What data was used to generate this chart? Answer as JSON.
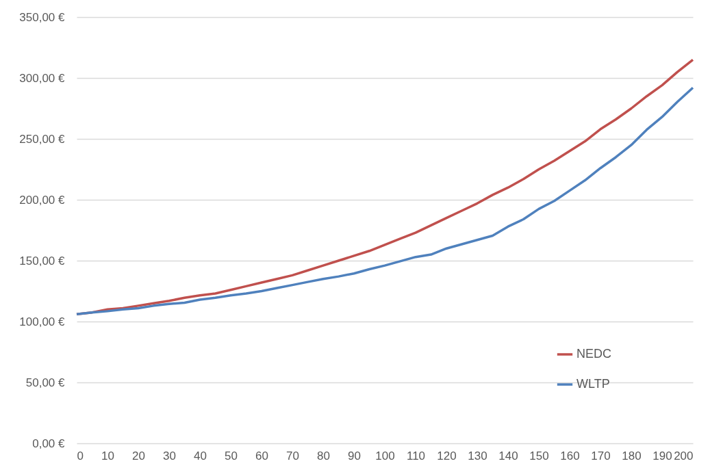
{
  "chart_data": {
    "type": "line",
    "x": [
      0,
      5,
      10,
      15,
      20,
      25,
      30,
      35,
      40,
      45,
      50,
      55,
      60,
      65,
      70,
      75,
      80,
      85,
      90,
      95,
      100,
      105,
      110,
      115,
      120,
      125,
      130,
      135,
      140,
      145,
      150,
      155,
      160,
      165,
      170,
      175,
      180,
      185,
      190,
      195,
      200
    ],
    "series": [
      {
        "name": "NEDC",
        "color": "#c0504d",
        "values": [
          106,
          107.5,
          110,
          111,
          113,
          115,
          117,
          119.5,
          121.5,
          123,
          126,
          129,
          132,
          135,
          138,
          142,
          146,
          150,
          154,
          158,
          163,
          168,
          173,
          179,
          185,
          191,
          197,
          204,
          210,
          217,
          225,
          232,
          240,
          248,
          258,
          266,
          275,
          285,
          294,
          305,
          315
        ]
      },
      {
        "name": "WLTP",
        "color": "#4f81bd",
        "values": [
          106,
          107.5,
          108.5,
          110,
          111,
          113,
          114.5,
          115.5,
          118,
          119.5,
          121.5,
          123,
          125,
          127.5,
          130,
          132.5,
          135,
          137,
          139.5,
          143,
          146,
          149.5,
          153,
          155,
          160,
          163.5,
          167,
          170.5,
          178,
          184,
          192.5,
          199,
          207.5,
          216,
          226,
          235,
          245,
          257.5,
          268,
          280.5,
          292
        ]
      }
    ],
    "xlim": [
      0,
      200
    ],
    "xticks": [
      0,
      10,
      20,
      30,
      40,
      50,
      60,
      70,
      80,
      90,
      100,
      110,
      120,
      130,
      140,
      150,
      160,
      170,
      180,
      190,
      200
    ],
    "ylim": [
      0,
      350
    ],
    "yticks": [
      {
        "value": 0,
        "label": "0,00 €"
      },
      {
        "value": 50,
        "label": "50,00 €"
      },
      {
        "value": 100,
        "label": "100,00 €"
      },
      {
        "value": 150,
        "label": "150,00 €"
      },
      {
        "value": 200,
        "label": "200,00 €"
      },
      {
        "value": 250,
        "label": "250,00 €"
      },
      {
        "value": 300,
        "label": "300,00 €"
      },
      {
        "value": 350,
        "label": "350,00 €"
      }
    ],
    "grid": "y",
    "legend": "bottom right",
    "marker": "none",
    "line_style": "solid"
  }
}
